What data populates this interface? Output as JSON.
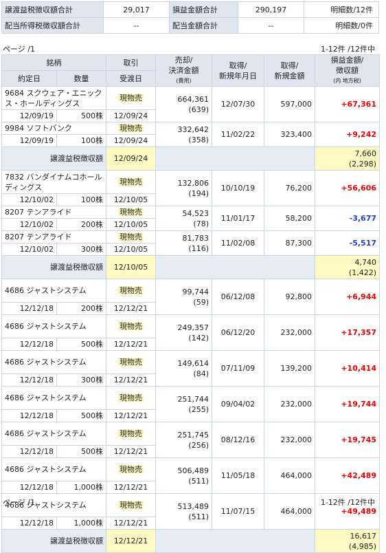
{
  "summary": {
    "row1": {
      "label1": "譲渡益税徴収額合計",
      "value1": "29,017",
      "label2": "損益金額合計",
      "value2": "290,197",
      "count": "明細数/12件"
    },
    "row2": {
      "label1": "配当所得税徴収額合計",
      "value1": "--",
      "label2": "配当金額合計",
      "value2": "--",
      "count": "明細数/0件"
    }
  },
  "pager": {
    "page_label": "ページ /1",
    "range_label": "1-12件 /12件中"
  },
  "header": {
    "name": "銘柄",
    "trade": "取引",
    "sale": "売却/",
    "settle": "決済金額",
    "fee": "(費用)",
    "acq_date1": "取得/",
    "acq_date2": "新規年月日",
    "acq_amt1": "取得/",
    "acq_amt2": "新規金額",
    "pl1": "損益金額/",
    "pl2": "徴収額",
    "pl3": "(内 地方税)",
    "contract": "約定日",
    "qty": "数量",
    "delivery": "受渡日"
  },
  "tax_label": "譲渡益税徴収額",
  "groups": [
    {
      "trades": [
        {
          "name": "9684 スクウェア・エニックス・ホールディングス",
          "contract": "12/09/19",
          "qty": "500株",
          "kind": "現物売",
          "delivery": "12/09/24",
          "amount": "664,361",
          "fee": "(639)",
          "acq_date": "12/07/30",
          "acq_amount": "597,000",
          "pl": "+67,361"
        },
        {
          "name": "9984 ソフトバンク",
          "contract": "12/09/19",
          "qty": "100株",
          "kind": "現物売",
          "delivery": "12/09/24",
          "amount": "332,642",
          "fee": "(358)",
          "acq_date": "11/02/22",
          "acq_amount": "323,400",
          "pl": "+9,242"
        }
      ],
      "tax": {
        "date": "12/09/24",
        "amount": "7,660",
        "local": "(2,298)"
      }
    },
    {
      "trades": [
        {
          "name": "7832 バンダイナムコホールディングス",
          "contract": "12/10/02",
          "qty": "100株",
          "kind": "現物売",
          "delivery": "12/10/05",
          "amount": "132,806",
          "fee": "(194)",
          "acq_date": "10/10/19",
          "acq_amount": "76,200",
          "pl": "+56,606"
        },
        {
          "name": "8207 テンアライド",
          "contract": "12/10/02",
          "qty": "200株",
          "kind": "現物売",
          "delivery": "12/10/05",
          "amount": "54,523",
          "fee": "(78)",
          "acq_date": "11/01/17",
          "acq_amount": "58,200",
          "pl": "-3,677"
        },
        {
          "name": "8207 テンアライド",
          "contract": "12/10/02",
          "qty": "300株",
          "kind": "現物売",
          "delivery": "12/10/05",
          "amount": "81,783",
          "fee": "(116)",
          "acq_date": "11/02/08",
          "acq_amount": "87,300",
          "pl": "-5,517"
        }
      ],
      "tax": {
        "date": "12/10/05",
        "amount": "4,740",
        "local": "(1,422)"
      }
    },
    {
      "trades": [
        {
          "name": "4686 ジャストシステム",
          "contract": "12/12/18",
          "qty": "200株",
          "kind": "現物売",
          "delivery": "12/12/21",
          "amount": "99,744",
          "fee": "(59)",
          "acq_date": "06/12/08",
          "acq_amount": "92,800",
          "pl": "+6,944"
        },
        {
          "name": "4686 ジャストシステム",
          "contract": "12/12/18",
          "qty": "500株",
          "kind": "現物売",
          "delivery": "12/12/21",
          "amount": "249,357",
          "fee": "(142)",
          "acq_date": "06/12/20",
          "acq_amount": "232,000",
          "pl": "+17,357"
        },
        {
          "name": "4686 ジャストシステム",
          "contract": "12/12/18",
          "qty": "300株",
          "kind": "現物売",
          "delivery": "12/12/21",
          "amount": "149,614",
          "fee": "(84)",
          "acq_date": "07/11/09",
          "acq_amount": "139,200",
          "pl": "+10,414"
        },
        {
          "name": "4686 ジャストシステム",
          "contract": "12/12/18",
          "qty": "500株",
          "kind": "現物売",
          "delivery": "12/12/21",
          "amount": "251,744",
          "fee": "(255)",
          "acq_date": "09/04/02",
          "acq_amount": "232,000",
          "pl": "+19,744"
        },
        {
          "name": "4686 ジャストシステム",
          "contract": "12/12/18",
          "qty": "500株",
          "kind": "現物売",
          "delivery": "12/12/21",
          "amount": "251,745",
          "fee": "(256)",
          "acq_date": "08/12/16",
          "acq_amount": "232,000",
          "pl": "+19,745"
        },
        {
          "name": "4686 ジャストシステム",
          "contract": "12/12/18",
          "qty": "1,000株",
          "kind": "現物売",
          "delivery": "12/12/21",
          "amount": "506,489",
          "fee": "(511)",
          "acq_date": "11/05/18",
          "acq_amount": "464,000",
          "pl": "+42,489"
        },
        {
          "name": "4686 ジャストシステム",
          "contract": "12/12/18",
          "qty": "1,000株",
          "kind": "現物売",
          "delivery": "12/12/21",
          "amount": "513,489",
          "fee": "(511)",
          "acq_date": "11/07/15",
          "acq_amount": "464,000",
          "pl": "+49,489"
        }
      ],
      "tax": {
        "date": "12/12/21",
        "amount": "16,617",
        "local": "(4,985)"
      }
    }
  ]
}
